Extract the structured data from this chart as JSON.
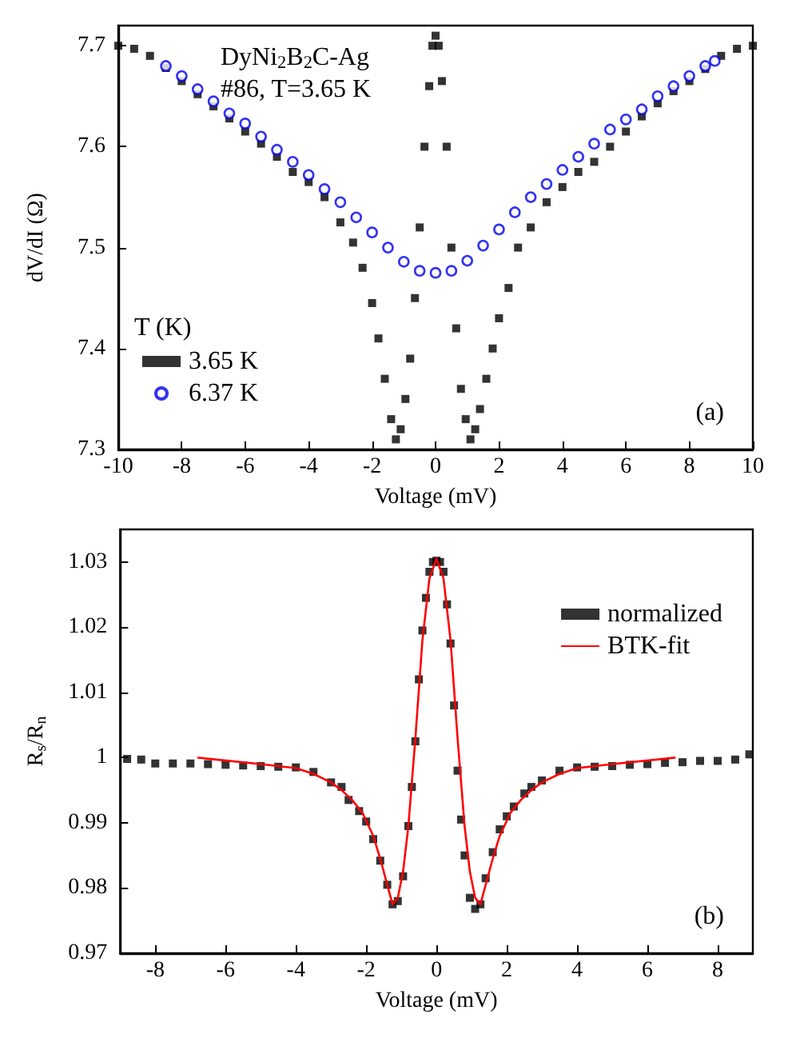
{
  "chart_data": [
    {
      "type": "scatter",
      "xlabel": "Voltage (mV)",
      "ylabel": "dV/dI (Ω)",
      "legend_title": "T (K)",
      "legend": "bottom left",
      "xlim": [
        -10,
        10
      ],
      "xticks": [
        -10,
        -8,
        -6,
        -4,
        -2,
        0,
        2,
        4,
        6,
        8,
        10
      ],
      "ylim": [
        7.3,
        7.72
      ],
      "yticks": [
        7.3,
        7.4,
        7.5,
        7.6,
        7.7
      ],
      "grid": false,
      "annotations": [
        "DyNi$_{2}$B$_{2}$C-Ag",
        "#86, T=3.65 K",
        "(a)"
      ],
      "series": [
        {
          "name": "3.65 K",
          "color": "#000000",
          "marker": "square",
          "x": [
            -10,
            -9.5,
            -9,
            -8.5,
            -8,
            -7.5,
            -7,
            -6.5,
            -6,
            -5.5,
            -5,
            -4.5,
            -4,
            -3.5,
            -3,
            -2.6,
            -2.3,
            -2,
            -1.8,
            -1.6,
            -1.4,
            -1.25,
            -1.1,
            -0.95,
            -0.8,
            -0.65,
            -0.5,
            -0.35,
            -0.2,
            -0.1,
            0,
            0.1,
            0.2,
            0.35,
            0.5,
            0.65,
            0.8,
            0.95,
            1.1,
            1.25,
            1.4,
            1.6,
            1.8,
            2,
            2.3,
            2.6,
            3,
            3.5,
            4,
            4.5,
            5,
            5.5,
            6,
            6.5,
            7,
            7.5,
            8,
            8.5,
            9,
            9.5,
            10
          ],
          "values": [
            7.7,
            7.697,
            7.69,
            7.678,
            7.665,
            7.652,
            7.64,
            7.628,
            7.615,
            7.603,
            7.59,
            7.575,
            7.565,
            7.55,
            7.525,
            7.505,
            7.48,
            7.445,
            7.41,
            7.37,
            7.33,
            7.31,
            7.32,
            7.35,
            7.39,
            7.45,
            7.52,
            7.6,
            7.66,
            7.7,
            7.71,
            7.7,
            7.665,
            7.6,
            7.5,
            7.42,
            7.36,
            7.33,
            7.31,
            7.32,
            7.34,
            7.37,
            7.4,
            7.43,
            7.46,
            7.5,
            7.52,
            7.545,
            7.56,
            7.575,
            7.585,
            7.6,
            7.615,
            7.63,
            7.643,
            7.655,
            7.665,
            7.677,
            7.69,
            7.697,
            7.7
          ]
        },
        {
          "name": "6.37 K",
          "color": "#0000ee",
          "marker": "circle",
          "x": [
            -8.5,
            -8,
            -7.5,
            -7,
            -6.5,
            -6,
            -5.5,
            -5,
            -4.5,
            -4,
            -3.5,
            -3,
            -2.5,
            -2,
            -1.5,
            -1,
            -0.5,
            0,
            0.5,
            1,
            1.5,
            2,
            2.5,
            3,
            3.5,
            4,
            4.5,
            5,
            5.5,
            6,
            6.5,
            7,
            7.5,
            8,
            8.5,
            8.8
          ],
          "values": [
            7.68,
            7.67,
            7.657,
            7.645,
            7.633,
            7.623,
            7.61,
            7.597,
            7.585,
            7.572,
            7.558,
            7.545,
            7.53,
            7.515,
            7.5,
            7.486,
            7.477,
            7.475,
            7.477,
            7.487,
            7.502,
            7.518,
            7.535,
            7.55,
            7.563,
            7.577,
            7.59,
            7.603,
            7.617,
            7.627,
            7.637,
            7.65,
            7.66,
            7.67,
            7.68,
            7.685
          ]
        }
      ]
    },
    {
      "type": "scatter",
      "xlabel": "Voltage (mV)",
      "ylabel": "R$_{s}$/R$_{n}$",
      "legend": "top right",
      "xlim": [
        -9,
        9
      ],
      "xticks": [
        -8,
        -6,
        -4,
        -2,
        0,
        2,
        4,
        6,
        8
      ],
      "ylim": [
        0.97,
        1.035
      ],
      "yticks": [
        0.97,
        0.98,
        0.99,
        1.0,
        1.01,
        1.02,
        1.03
      ],
      "grid": false,
      "annotations": [
        "(b)"
      ],
      "series": [
        {
          "name": "normalized",
          "color": "#000000",
          "marker": "square",
          "x": [
            -8.8,
            -8.4,
            -8,
            -7.5,
            -7,
            -6.5,
            -6,
            -5.5,
            -5,
            -4.5,
            -4,
            -3.5,
            -3,
            -2.7,
            -2.5,
            -2.2,
            -2,
            -1.8,
            -1.6,
            -1.4,
            -1.25,
            -1.1,
            -0.95,
            -0.8,
            -0.7,
            -0.6,
            -0.5,
            -0.4,
            -0.3,
            -0.2,
            -0.1,
            0,
            0.1,
            0.2,
            0.3,
            0.4,
            0.5,
            0.6,
            0.7,
            0.8,
            0.95,
            1.1,
            1.25,
            1.4,
            1.6,
            1.8,
            2,
            2.2,
            2.5,
            2.7,
            3,
            3.5,
            4,
            4.5,
            5,
            5.5,
            6,
            6.5,
            7,
            7.5,
            8,
            8.5,
            8.9
          ],
          "values": [
            0.9998,
            0.9997,
            0.9991,
            0.9991,
            0.9991,
            0.999,
            0.9989,
            0.9988,
            0.9987,
            0.9986,
            0.9985,
            0.9978,
            0.9962,
            0.9955,
            0.9935,
            0.9918,
            0.9902,
            0.9875,
            0.9842,
            0.9805,
            0.9775,
            0.978,
            0.9818,
            0.9895,
            0.9955,
            1.0025,
            1.012,
            1.0195,
            1.0245,
            1.0285,
            1.03,
            1.0302,
            1.03,
            1.0285,
            1.0235,
            1.0175,
            1.008,
            0.998,
            0.9905,
            0.985,
            0.9785,
            0.9768,
            0.9775,
            0.9815,
            0.9855,
            0.989,
            0.991,
            0.9925,
            0.9945,
            0.9955,
            0.9965,
            0.998,
            0.9985,
            0.9986,
            0.9987,
            0.9989,
            0.999,
            0.9992,
            0.9993,
            0.9995,
            0.9995,
            0.9997,
            1.0005
          ]
        },
        {
          "name": "BTK-fit",
          "color": "#ff0000",
          "type": "line",
          "marker": "none",
          "x": [
            -6.8,
            -5,
            -4,
            -3.5,
            -3,
            -2.7,
            -2.4,
            -2.1,
            -1.8,
            -1.6,
            -1.4,
            -1.25,
            -1.1,
            -0.95,
            -0.8,
            -0.6,
            -0.4,
            -0.2,
            0,
            0.2,
            0.4,
            0.6,
            0.8,
            0.95,
            1.1,
            1.25,
            1.4,
            1.6,
            1.8,
            2.1,
            2.4,
            2.7,
            3,
            3.5,
            4,
            5,
            6.8
          ],
          "values": [
            1.0,
            0.999,
            0.9984,
            0.9975,
            0.9962,
            0.995,
            0.9935,
            0.9915,
            0.988,
            0.9845,
            0.9805,
            0.9775,
            0.9785,
            0.9825,
            0.9895,
            1.003,
            1.018,
            1.0275,
            1.0305,
            1.0275,
            1.018,
            1.003,
            0.9895,
            0.9825,
            0.9785,
            0.9775,
            0.9805,
            0.9845,
            0.988,
            0.9915,
            0.9935,
            0.995,
            0.9962,
            0.9975,
            0.9984,
            0.999,
            1.0
          ]
        }
      ]
    }
  ]
}
